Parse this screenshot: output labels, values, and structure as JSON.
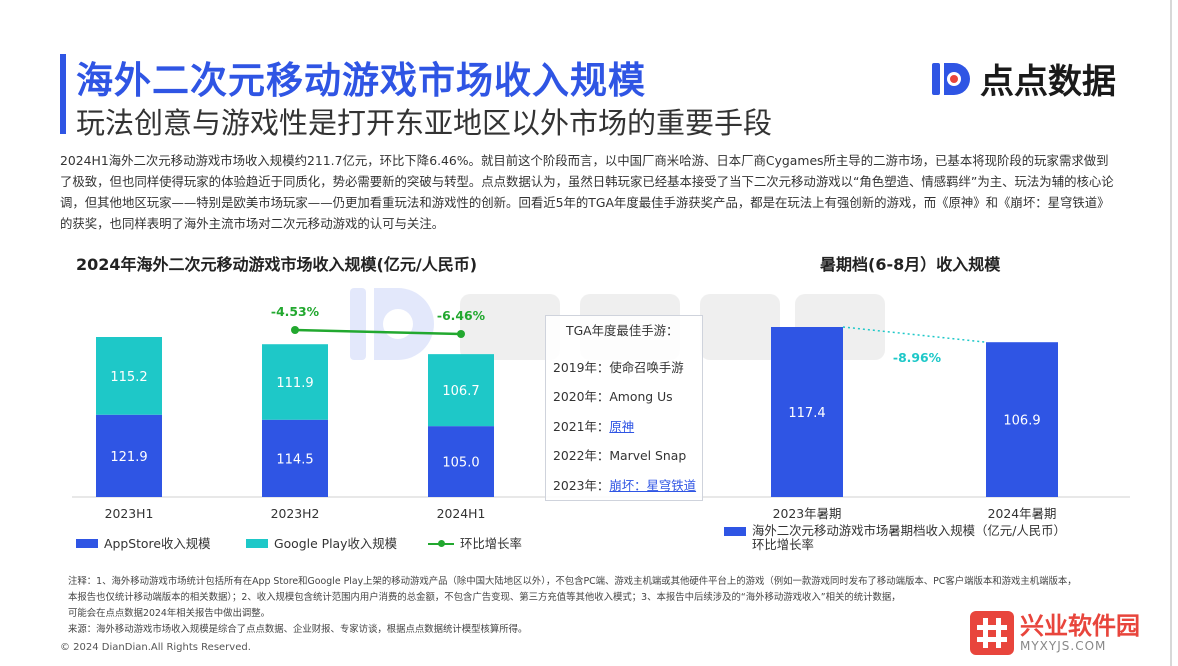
{
  "header": {
    "title": "海外二次元移动游戏市场收入规模",
    "subtitle": "玩法创意与游戏性是打开东亚地区以外市场的重要手段",
    "logo_text": "点点数据"
  },
  "intro": "2024H1海外二次元移动游戏市场收入规模约211.7亿元，环比下降6.46%。就目前这个阶段而言，以中国厂商米哈游、日本厂商Cygames所主导的二游市场，已基本将现阶段的玩家需求做到了极致，但也同样使得玩家的体验趋近于同质化，势必需要新的突破与转型。点点数据认为，虽然日韩玩家已经基本接受了当下二次元移动游戏以“角色塑造、情感羁绊”为主、玩法为辅的核心论调，但其他地区玩家——特别是欧美市场玩家——仍更加看重玩法和游戏性的创新。回看近5年的TGA年度最佳手游获奖产品，都是在玩法上有强创新的游戏，而《原神》和《崩坏：星穹铁道》的获奖，也同样表明了海外主流市场对二次元移动游戏的认可与关注。",
  "tga": {
    "title": "TGA年度最佳手游：",
    "items": [
      {
        "year": "2019年：",
        "game": "使命召唤手游",
        "link": false
      },
      {
        "year": "2020年：",
        "game": "Among Us",
        "link": false
      },
      {
        "year": "2021年：",
        "game": "原神",
        "link": true
      },
      {
        "year": "2022年：",
        "game": "Marvel Snap",
        "link": false
      },
      {
        "year": "2023年：",
        "game": "崩坏：星穹铁道",
        "link": true
      }
    ]
  },
  "chart_data": [
    {
      "type": "bar",
      "stacked": true,
      "title": "2024年海外二次元移动游戏市场收入规模(亿元/人民币)",
      "categories": [
        "2023H1",
        "2023H2",
        "2024H1"
      ],
      "series": [
        {
          "name": "AppStore收入规模",
          "values": [
            121.9,
            114.5,
            105.0
          ],
          "labels": [
            "121.9",
            "114.5",
            "105.0"
          ],
          "color": "#2f55e4"
        },
        {
          "name": "Google Play收入规模",
          "values": [
            115.2,
            111.9,
            106.7
          ],
          "labels": [
            "115.2",
            "111.9",
            "106.7"
          ],
          "color": "#1ec8c8"
        }
      ],
      "line_series": {
        "name": "环比增长率",
        "categories": [
          "2023H2",
          "2024H1"
        ],
        "labels": [
          "-4.53%",
          "-6.46%"
        ],
        "color": "#22a82f"
      },
      "ylim": [
        0,
        240
      ]
    },
    {
      "type": "bar",
      "title": "暑期档(6-8月）收入规模",
      "categories": [
        "2023年暑期",
        "2024年暑期"
      ],
      "series": [
        {
          "name": "海外二次元移动游戏市场暑期档收入规模（亿元/人民币）",
          "values": [
            117.4,
            106.9
          ],
          "labels": [
            "117.4",
            "106.9"
          ],
          "color": "#2f55e4"
        }
      ],
      "growth": {
        "name": "环比增长率",
        "label": "-8.96%",
        "color": "#1ec8c8"
      },
      "ylim": [
        0,
        120
      ]
    }
  ],
  "legend_left": {
    "appstore": "AppStore收入规模",
    "googleplay": "Google Play收入规模",
    "growth": "环比增长率"
  },
  "legend_right": {
    "series": "海外二次元移动游戏市场暑期档收入规模（亿元/人民币）",
    "growth": "环比增长率"
  },
  "notes": {
    "line1": "注释：1、海外移动游戏市场统计包括所有在App Store和Google Play上架的移动游戏产品（除中国大陆地区以外），不包含PC端、游戏主机端或其他硬件平台上的游戏（例如一款游戏同时发布了移动端版本、PC客户端版本和游戏主机端版本，",
    "line2": "本报告也仅统计移动端版本的相关数据）；2、收入规模包含统计范围内用户消费的总金额，不包含广告变现、第三方充值等其他收入模式；3、本报告中后续涉及的“海外移动游戏收入”相关的统计数据，",
    "line3": "可能会在点点数据2024年相关报告中做出调整。",
    "source": "来源：海外移动游戏市场收入规模是综合了点点数据、企业财报、专家访谈，根据点点数据统计模型核算所得。"
  },
  "footer": {
    "copyright": "© 2024 DianDian.All Rights Reserved.",
    "brand_name": "兴业软件园",
    "brand_url": "MYXYJS.COM"
  },
  "colors": {
    "accent": "#2f55e4",
    "teal": "#1ec8c8",
    "green": "#22a82f",
    "brand_red": "#e8453c"
  }
}
